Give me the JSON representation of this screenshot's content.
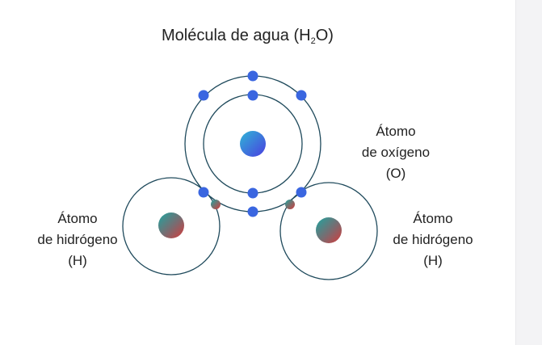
{
  "title": {
    "prefix": "Molécula de agua (H",
    "subscript": "2",
    "suffix": "O)"
  },
  "labels": {
    "oxygen": {
      "line1": "Átomo",
      "line2": "de oxígeno",
      "line3": "(O)"
    },
    "hydrogen_left": {
      "line1": "Átomo",
      "line2": "de hidrógeno",
      "line3": "(H)"
    },
    "hydrogen_right": {
      "line1": "Átomo",
      "line2": "de hidrógeno",
      "line3": "(H)"
    }
  },
  "colors": {
    "orbit": "#1f4a5c",
    "electron": "#3a66e0",
    "oxygen_nucleus_from": "#2fb5d6",
    "oxygen_nucleus_to": "#4a3fe0",
    "hydrogen_nucleus_from": "#1ea5a0",
    "hydrogen_nucleus_to": "#d63a3a"
  }
}
